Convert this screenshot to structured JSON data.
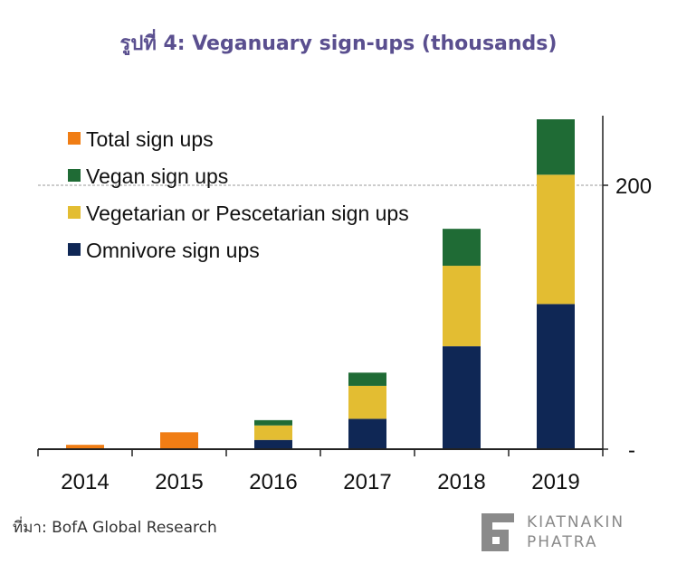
{
  "page": {
    "title": "รูปที่ 4: Veganuary sign-ups (thousands)",
    "source": "ที่มา: BofA Global Research",
    "logo_line1": "KIATNAKIN",
    "logo_line2": "PHATRA"
  },
  "colors": {
    "total": "#f07d14",
    "vegan": "#1f6b35",
    "vegetarian": "#e3bd32",
    "omnivore": "#0f2755",
    "title": "#5a4f8f",
    "logo": "#8a8a8a"
  },
  "chart_data": {
    "type": "bar",
    "stacked": true,
    "categories": [
      "2014",
      "2015",
      "2016",
      "2017",
      "2018",
      "2019"
    ],
    "series": [
      {
        "name": "Total sign ups",
        "color": "#f07d14",
        "values": [
          3.3,
          12.8,
          0,
          0,
          0,
          0
        ]
      },
      {
        "name": "Omnivore sign ups",
        "color": "#0f2755",
        "values": [
          0,
          0,
          7,
          23,
          78,
          110
        ]
      },
      {
        "name": "Vegetarian or Pescetarian sign ups",
        "color": "#e3bd32",
        "values": [
          0,
          0,
          11,
          25,
          61,
          98
        ]
      },
      {
        "name": "Vegan sign ups",
        "color": "#1f6b35",
        "values": [
          0,
          0,
          4,
          10,
          28,
          42
        ]
      }
    ],
    "y_ticks": [
      {
        "value": 0,
        "label": "-"
      },
      {
        "value": 200,
        "label": "200"
      }
    ],
    "ylim": [
      0,
      250
    ],
    "y_axis_side": "right",
    "reference_line": {
      "value": 200,
      "style": "dashed"
    },
    "legend": {
      "position": "top-left",
      "entries": [
        {
          "label": "Total sign ups",
          "color": "#f07d14"
        },
        {
          "label": "Vegan sign ups",
          "color": "#1f6b35"
        },
        {
          "label": "Vegetarian or Pescetarian sign ups",
          "color": "#e3bd32"
        },
        {
          "label": "Omnivore sign ups",
          "color": "#0f2755"
        }
      ]
    }
  }
}
